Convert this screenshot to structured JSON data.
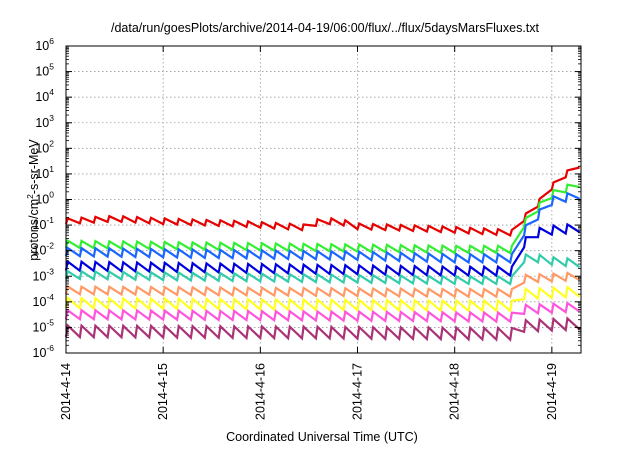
{
  "chart_data": {
    "type": "line",
    "title": "/data/run/goesPlots/archive/2014-04-19/06:00/flux/../flux/5daysMarsFluxes.txt",
    "xlabel": "Coordinated Universal Time (UTC)",
    "ylabel_parts": {
      "pre": "protons/cm",
      "sup": "2",
      "post": "-s-sr-MeV"
    },
    "yscale": "log",
    "ylim_exp": [
      -6,
      6
    ],
    "ytick_exps": [
      "-6",
      "-5",
      "-4",
      "-3",
      "-2",
      "-1",
      "0",
      "1",
      "2",
      "3",
      "4",
      "5",
      "6"
    ],
    "ytick_base": "10",
    "xlim_days": [
      0,
      5.3
    ],
    "xticks": [
      "2014-4-14",
      "2014-4-15",
      "2014-4-16",
      "2014-4-17",
      "2014-4-18",
      "2014-4-19"
    ],
    "grid": true,
    "cycles_per_day": 7,
    "series": [
      {
        "color": "#e60000",
        "keys": [
          [
            0,
            -0.85
          ],
          [
            0.5,
            -0.75
          ],
          [
            1.0,
            -0.85
          ],
          [
            1.8,
            -0.95
          ],
          [
            2.5,
            -1.1
          ],
          [
            2.6,
            -0.85
          ],
          [
            2.8,
            -0.85
          ],
          [
            3.0,
            -1.05
          ],
          [
            3.8,
            -1.15
          ],
          [
            4.6,
            -1.3
          ],
          [
            4.72,
            -0.7
          ],
          [
            4.85,
            -0.2
          ],
          [
            5.0,
            0.5
          ],
          [
            5.15,
            1.0
          ],
          [
            5.3,
            1.4
          ]
        ],
        "amp": 0.22
      },
      {
        "color": "#33ee33",
        "keys": [
          [
            0,
            -1.75
          ],
          [
            1.0,
            -1.8
          ],
          [
            2.0,
            -1.85
          ],
          [
            3.0,
            -1.9
          ],
          [
            4.0,
            -1.95
          ],
          [
            4.6,
            -1.95
          ],
          [
            4.7,
            -1.0
          ],
          [
            4.85,
            -0.35
          ],
          [
            5.0,
            0.2
          ],
          [
            5.3,
            0.65
          ]
        ],
        "amp": 0.28
      },
      {
        "color": "#1a66ff",
        "keys": [
          [
            0,
            -2.05
          ],
          [
            1.0,
            -2.1
          ],
          [
            2.0,
            -2.15
          ],
          [
            3.0,
            -2.2
          ],
          [
            4.0,
            -2.3
          ],
          [
            4.6,
            -2.3
          ],
          [
            4.7,
            -1.3
          ],
          [
            4.85,
            -0.65
          ],
          [
            5.0,
            -0.05
          ],
          [
            5.3,
            0.2
          ]
        ],
        "amp": 0.32
      },
      {
        "color": "#0000dd",
        "keys": [
          [
            0,
            -2.6
          ],
          [
            1.0,
            -2.65
          ],
          [
            2.0,
            -2.7
          ],
          [
            3.0,
            -2.75
          ],
          [
            4.0,
            -2.8
          ],
          [
            4.6,
            -2.8
          ],
          [
            4.68,
            -1.8
          ],
          [
            4.85,
            -1.3
          ],
          [
            5.0,
            -1.2
          ],
          [
            5.3,
            -1.1
          ]
        ],
        "amp": 0.35
      },
      {
        "color": "#33ccaa",
        "keys": [
          [
            0,
            -2.95
          ],
          [
            1.0,
            -3.0
          ],
          [
            2.0,
            -3.05
          ],
          [
            3.0,
            -3.1
          ],
          [
            4.0,
            -3.15
          ],
          [
            4.6,
            -3.15
          ],
          [
            4.68,
            -2.3
          ],
          [
            4.85,
            -2.3
          ],
          [
            5.0,
            -2.4
          ],
          [
            5.3,
            -2.5
          ]
        ],
        "amp": 0.3
      },
      {
        "color": "#ff9966",
        "keys": [
          [
            0,
            -3.55
          ],
          [
            2.0,
            -3.6
          ],
          [
            4.0,
            -3.65
          ],
          [
            4.6,
            -3.65
          ],
          [
            4.7,
            -3.1
          ],
          [
            5.3,
            -3.0
          ]
        ],
        "amp": 0.3
      },
      {
        "color": "#ffff22",
        "keys": [
          [
            0,
            -4.05
          ],
          [
            2.0,
            -4.1
          ],
          [
            4.0,
            -4.15
          ],
          [
            4.6,
            -4.15
          ],
          [
            4.7,
            -3.7
          ],
          [
            5.3,
            -3.6
          ]
        ],
        "amp": 0.4
      },
      {
        "color": "#ff55dd",
        "keys": [
          [
            0,
            -4.5
          ],
          [
            2.5,
            -4.55
          ],
          [
            4.6,
            -4.6
          ],
          [
            4.7,
            -4.3
          ],
          [
            5.3,
            -4.2
          ]
        ],
        "amp": 0.35
      },
      {
        "color": "#aa3377",
        "keys": [
          [
            0,
            -5.15
          ],
          [
            2.5,
            -5.2
          ],
          [
            4.6,
            -5.25
          ],
          [
            4.7,
            -4.95
          ],
          [
            5.3,
            -4.85
          ]
        ],
        "amp": 0.45
      }
    ]
  }
}
